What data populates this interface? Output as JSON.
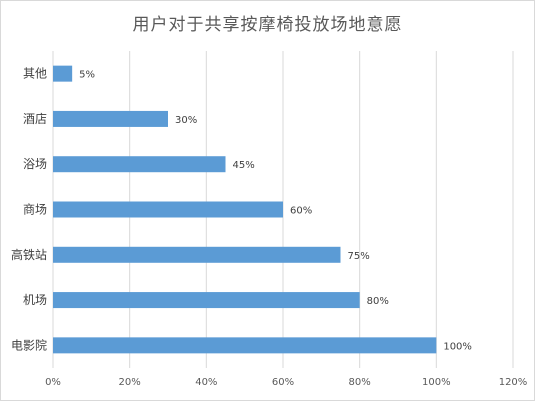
{
  "chart_data": {
    "type": "bar",
    "orientation": "horizontal",
    "title": "用户对于共享按摩椅投放场地意愿",
    "categories": [
      "其他",
      "酒店",
      "浴场",
      "商场",
      "高铁站",
      "机场",
      "电影院"
    ],
    "values": [
      5,
      30,
      45,
      60,
      75,
      80,
      100
    ],
    "data_labels": [
      "5%",
      "30%",
      "45%",
      "60%",
      "75%",
      "80%",
      "100%"
    ],
    "xlim": [
      0,
      120
    ],
    "x_ticks": [
      "0%",
      "20%",
      "40%",
      "60%",
      "80%",
      "100%",
      "120%"
    ],
    "xlabel": "",
    "ylabel": "",
    "grid": "vertical",
    "legend": "none",
    "bar_color": "#5b9bd5",
    "grid_color": "#d9d9d9"
  }
}
